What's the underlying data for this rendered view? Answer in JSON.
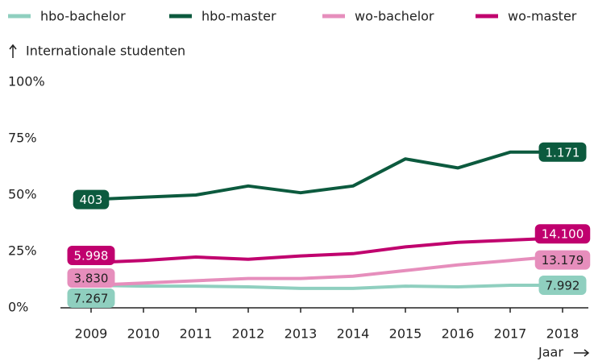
{
  "chart_data": {
    "type": "line",
    "y_label": "Internationale studenten",
    "x_label": "Jaar",
    "x": [
      2009,
      2010,
      2011,
      2012,
      2013,
      2014,
      2015,
      2016,
      2017,
      2018
    ],
    "xlim": [
      2009,
      2018
    ],
    "xticks": [
      2009,
      2010,
      2011,
      2012,
      2013,
      2014,
      2015,
      2016,
      2017,
      2018
    ],
    "ylim": [
      0,
      100
    ],
    "yticks": [
      {
        "value": 0,
        "label": "0%"
      },
      {
        "value": 25,
        "label": "25%"
      },
      {
        "value": 50,
        "label": "50%"
      },
      {
        "value": 75,
        "label": "75%"
      },
      {
        "value": 100,
        "label": "100%"
      }
    ],
    "grid": false,
    "legend": "top",
    "series": [
      {
        "name": "hbo-bachelor",
        "color": "#8fcfbf",
        "values": [
          10,
          9.6,
          9.6,
          9.3,
          8.6,
          8.6,
          9.6,
          9.3,
          10,
          10
        ],
        "start_label": "7.267",
        "end_label": "7.992"
      },
      {
        "name": "hbo-master",
        "color": "#0c5a3e",
        "values": [
          48,
          49,
          50,
          54,
          51,
          54,
          66,
          62,
          69,
          69
        ],
        "start_label": "403",
        "end_label": "1.171"
      },
      {
        "name": "wo-bachelor",
        "color": "#e68ebc",
        "values": [
          10,
          11,
          12,
          13,
          13,
          14,
          16.5,
          19,
          21,
          23
        ],
        "start_label": "3.830",
        "end_label": "13.179"
      },
      {
        "name": "wo-master",
        "color": "#c0006e",
        "values": [
          20,
          21,
          22.5,
          21.5,
          23,
          24,
          27,
          29,
          30,
          31
        ],
        "start_label": "5.998",
        "end_label": "14.100"
      }
    ]
  }
}
